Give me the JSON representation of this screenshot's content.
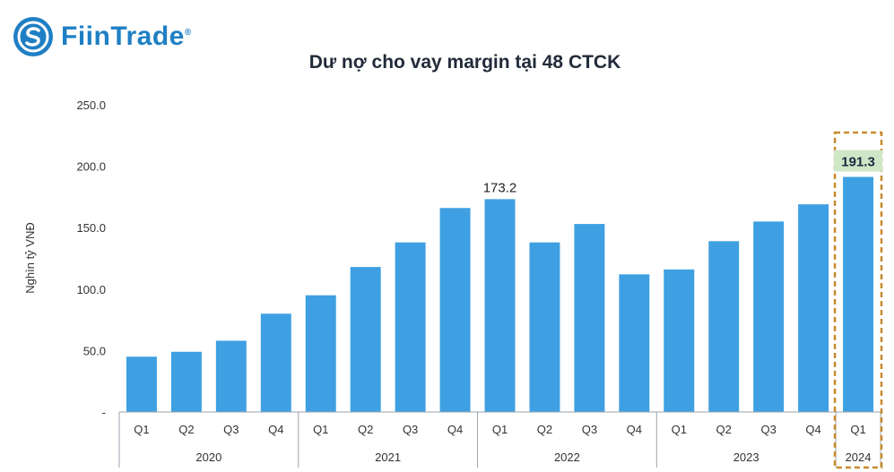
{
  "brand": {
    "name": "FiinTrade",
    "reg": "®"
  },
  "colors": {
    "bar": "#3ea0e2",
    "brand": "#1f7fc4",
    "highlight_border": "#c8892e",
    "highlight_label_bg": "#cfe6c7"
  },
  "chart_data": {
    "type": "bar",
    "title": "Dư nợ cho vay margin tại 48 CTCK",
    "ylabel": "Nghìn tỷ VNĐ",
    "ylim": [
      0,
      250
    ],
    "yticks": [
      "-",
      "50.0",
      "100.0",
      "150.0",
      "200.0",
      "250.0"
    ],
    "grid": false,
    "categories": [
      "Q1",
      "Q2",
      "Q3",
      "Q4",
      "Q1",
      "Q2",
      "Q3",
      "Q4",
      "Q1",
      "Q2",
      "Q3",
      "Q4",
      "Q1",
      "Q2",
      "Q3",
      "Q4",
      "Q1"
    ],
    "groups": [
      {
        "label": "2020",
        "count": 4
      },
      {
        "label": "2021",
        "count": 4
      },
      {
        "label": "2022",
        "count": 4
      },
      {
        "label": "2023",
        "count": 4
      },
      {
        "label": "2024",
        "count": 1
      }
    ],
    "values": [
      45,
      49,
      58,
      80,
      95,
      118,
      138,
      166,
      173.2,
      138,
      153,
      112,
      116,
      139,
      155,
      169,
      191.3
    ],
    "data_labels": [
      {
        "index": 8,
        "text": "173.2",
        "highlight": false
      },
      {
        "index": 16,
        "text": "191.3",
        "highlight": true
      }
    ],
    "highlight_index": 16
  }
}
